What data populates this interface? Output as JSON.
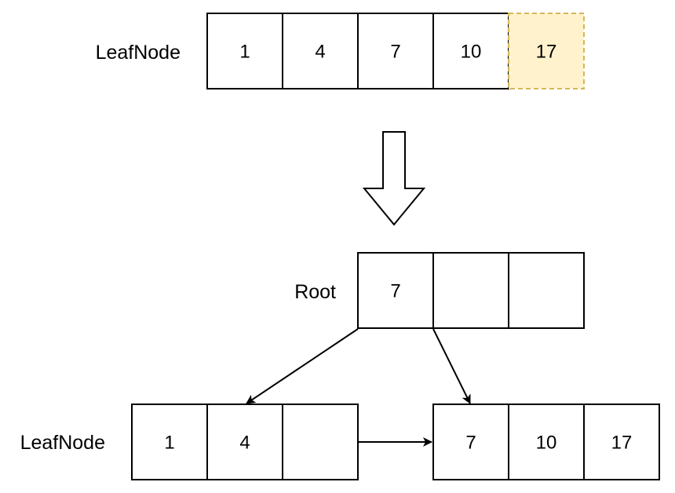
{
  "before": {
    "label": "LeafNode",
    "cells": [
      "1",
      "4",
      "7",
      "10",
      "17"
    ],
    "new_cell_index": 4
  },
  "after": {
    "root": {
      "label": "Root",
      "cells": [
        "7",
        "",
        ""
      ]
    },
    "left_leaf": {
      "label": "LeafNode",
      "cells": [
        "1",
        "4",
        ""
      ]
    },
    "right_leaf": {
      "cells": [
        "7",
        "10",
        "17"
      ]
    }
  },
  "colors": {
    "new_key_fill": "#fff2cc",
    "new_key_border": "#d6b656"
  }
}
